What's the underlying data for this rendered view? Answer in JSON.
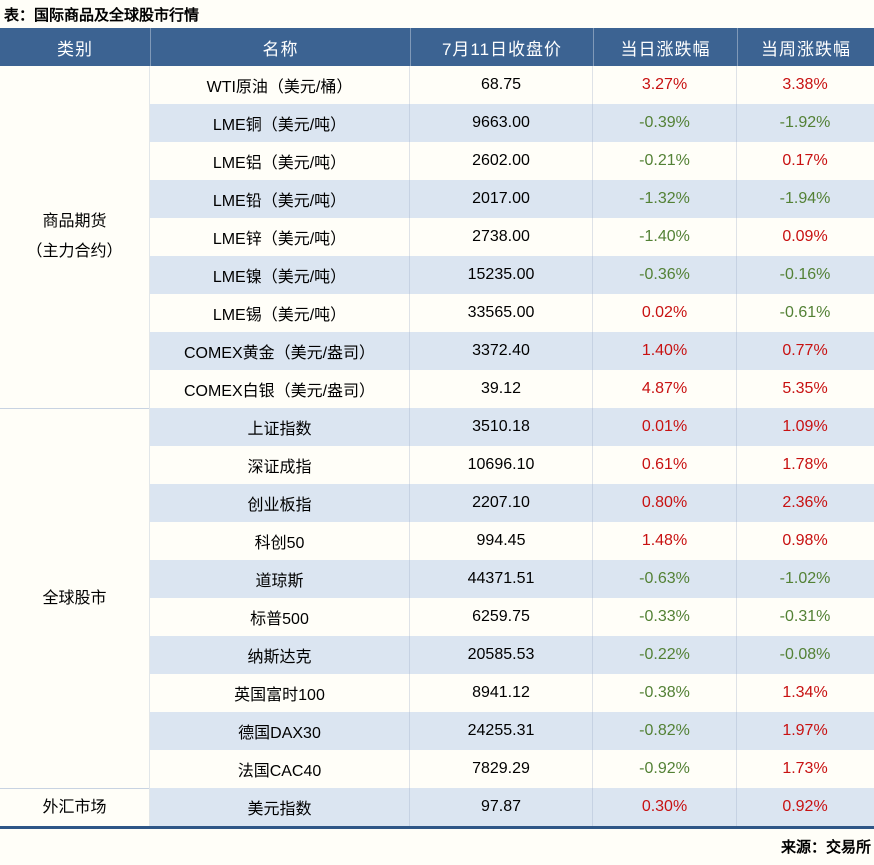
{
  "colors": {
    "page_bg": "#fffef8",
    "header_bg": "#3c6392",
    "header_text": "#ffffff",
    "stripe": "#dbe5f1",
    "white_row": "#fffef8",
    "up": "#c81111",
    "down": "#538135",
    "border_bottom": "#2e5687",
    "group_line": "#c8d3e2",
    "text": "#111111"
  },
  "chart_data": {
    "type": "table",
    "title": "表：国际商品及全球股市行情",
    "source": "来源：交易所",
    "columns": [
      "类别",
      "名称",
      "7月11日收盘价",
      "当日涨跌幅",
      "当周涨跌幅"
    ],
    "legend_note": "red = gain (Chinese convention), green = loss",
    "groups": [
      {
        "category": "商品期货（主力合约）",
        "category_lines": [
          "商品期货",
          "（主力合约）"
        ],
        "rows": [
          {
            "name": "WTI原油（美元/桶）",
            "close": "68.75",
            "day_chg": "3.27%",
            "week_chg": "3.38%"
          },
          {
            "name": "LME铜（美元/吨）",
            "close": "9663.00",
            "day_chg": "-0.39%",
            "week_chg": "-1.92%"
          },
          {
            "name": "LME铝（美元/吨）",
            "close": "2602.00",
            "day_chg": "-0.21%",
            "week_chg": "0.17%"
          },
          {
            "name": "LME铅（美元/吨）",
            "close": "2017.00",
            "day_chg": "-1.32%",
            "week_chg": "-1.94%"
          },
          {
            "name": "LME锌（美元/吨）",
            "close": "2738.00",
            "day_chg": "-1.40%",
            "week_chg": "0.09%"
          },
          {
            "name": "LME镍（美元/吨）",
            "close": "15235.00",
            "day_chg": "-0.36%",
            "week_chg": "-0.16%"
          },
          {
            "name": "LME锡（美元/吨）",
            "close": "33565.00",
            "day_chg": "0.02%",
            "week_chg": "-0.61%"
          },
          {
            "name": "COMEX黄金（美元/盎司）",
            "close": "3372.40",
            "day_chg": "1.40%",
            "week_chg": "0.77%"
          },
          {
            "name": "COMEX白银（美元/盎司）",
            "close": "39.12",
            "day_chg": "4.87%",
            "week_chg": "5.35%"
          }
        ]
      },
      {
        "category": "全球股市",
        "category_lines": [
          "全球股市"
        ],
        "rows": [
          {
            "name": "上证指数",
            "close": "3510.18",
            "day_chg": "0.01%",
            "week_chg": "1.09%"
          },
          {
            "name": "深证成指",
            "close": "10696.10",
            "day_chg": "0.61%",
            "week_chg": "1.78%"
          },
          {
            "name": "创业板指",
            "close": "2207.10",
            "day_chg": "0.80%",
            "week_chg": "2.36%"
          },
          {
            "name": "科创50",
            "close": "994.45",
            "day_chg": "1.48%",
            "week_chg": "0.98%"
          },
          {
            "name": "道琼斯",
            "close": "44371.51",
            "day_chg": "-0.63%",
            "week_chg": "-1.02%"
          },
          {
            "name": "标普500",
            "close": "6259.75",
            "day_chg": "-0.33%",
            "week_chg": "-0.31%"
          },
          {
            "name": "纳斯达克",
            "close": "20585.53",
            "day_chg": "-0.22%",
            "week_chg": "-0.08%"
          },
          {
            "name": "英国富时100",
            "close": "8941.12",
            "day_chg": "-0.38%",
            "week_chg": "1.34%"
          },
          {
            "name": "德国DAX30",
            "close": "24255.31",
            "day_chg": "-0.82%",
            "week_chg": "1.97%"
          },
          {
            "name": "法国CAC40",
            "close": "7829.29",
            "day_chg": "-0.92%",
            "week_chg": "1.73%"
          }
        ]
      },
      {
        "category": "外汇市场",
        "category_lines": [
          "外汇市场"
        ],
        "rows": [
          {
            "name": "美元指数",
            "close": "97.87",
            "day_chg": "0.30%",
            "week_chg": "0.92%"
          }
        ]
      }
    ]
  }
}
